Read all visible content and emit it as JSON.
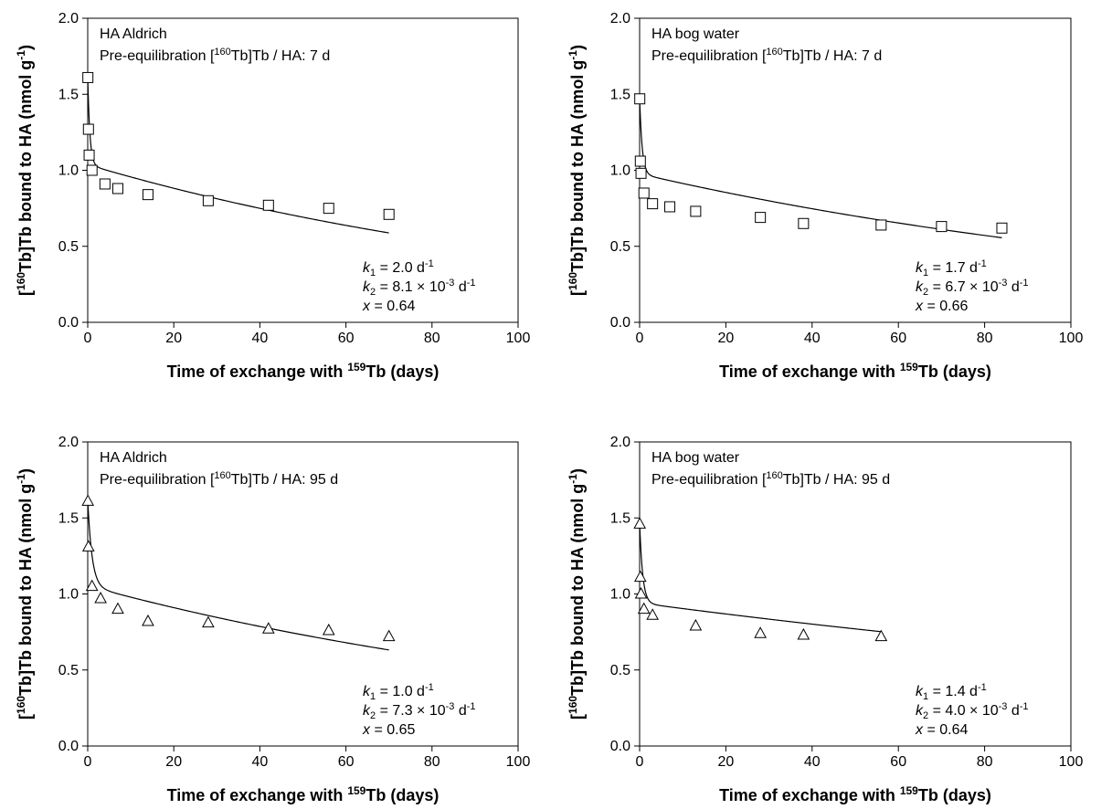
{
  "chart_data": [
    {
      "type": "scatter",
      "marker": "square",
      "annotation": {
        "line1": "HA Aldrich",
        "line2_pre": "Pre-equilibration [",
        "line2_iso": "160",
        "line2_post": "Tb]Tb / HA: 7 d"
      },
      "params": {
        "k1_value": "= 2.0 d",
        "k1_exp": "-1",
        "k2_value": "= 8.1 × 10",
        "k2_exp1": "-3",
        "k2_unit": " d",
        "k2_exp2": "-1",
        "x_value": "= 0.64"
      },
      "xlabel": {
        "pre": "Time of exchange with ",
        "iso": "159",
        "post": "Tb (days)"
      },
      "ylabel": {
        "pre": "[",
        "iso": "160",
        "mid": "Tb]Tb bound to HA (nmol g",
        "exp": "-1",
        "post": ")"
      },
      "xlim": [
        0,
        100
      ],
      "ylim": [
        0,
        2.0
      ],
      "xticks": [
        "0",
        "20",
        "40",
        "60",
        "80",
        "100"
      ],
      "yticks": [
        "0.0",
        "0.5",
        "1.0",
        "1.5",
        "2.0"
      ],
      "x": [
        0.04,
        0.17,
        0.33,
        1,
        4,
        7,
        14,
        28,
        42,
        56,
        70
      ],
      "y": [
        1.61,
        1.27,
        1.1,
        1.0,
        0.91,
        0.88,
        0.84,
        0.8,
        0.77,
        0.75,
        0.71
      ],
      "fit": {
        "y0": 1.62,
        "k1": 2.0,
        "k2": 0.0081,
        "frac": 0.64,
        "xmax": 70
      }
    },
    {
      "type": "scatter",
      "marker": "square",
      "annotation": {
        "line1": "HA bog water",
        "line2_pre": "Pre-equilibration [",
        "line2_iso": "160",
        "line2_post": "Tb]Tb / HA: 7 d"
      },
      "params": {
        "k1_value": "= 1.7 d",
        "k1_exp": "-1",
        "k2_value": "= 6.7 × 10",
        "k2_exp1": "-3",
        "k2_unit": " d",
        "k2_exp2": "-1",
        "x_value": "= 0.66"
      },
      "xlabel": {
        "pre": "Time of exchange with ",
        "iso": "159",
        "post": "Tb (days)"
      },
      "ylabel": {
        "pre": "[",
        "iso": "160",
        "mid": "Tb]Tb bound to HA (nmol g",
        "exp": "-1",
        "post": ")"
      },
      "xlim": [
        0,
        100
      ],
      "ylim": [
        0,
        2.0
      ],
      "xticks": [
        "0",
        "20",
        "40",
        "60",
        "80",
        "100"
      ],
      "yticks": [
        "0.0",
        "0.5",
        "1.0",
        "1.5",
        "2.0"
      ],
      "x": [
        0.04,
        0.17,
        0.33,
        1,
        3,
        7,
        13,
        28,
        38,
        56,
        70,
        84
      ],
      "y": [
        1.47,
        1.06,
        0.98,
        0.85,
        0.78,
        0.76,
        0.73,
        0.69,
        0.65,
        0.64,
        0.63,
        0.62
      ],
      "fit": {
        "y0": 1.48,
        "k1": 1.7,
        "k2": 0.0067,
        "frac": 0.66,
        "xmax": 84
      }
    },
    {
      "type": "scatter",
      "marker": "triangle",
      "annotation": {
        "line1": "HA Aldrich",
        "line2_pre": "Pre-equilibration [",
        "line2_iso": "160",
        "line2_post": "Tb]Tb / HA: 95 d"
      },
      "params": {
        "k1_value": "= 1.0 d",
        "k1_exp": "-1",
        "k2_value": "= 7.3 × 10",
        "k2_exp1": "-3",
        "k2_unit": " d",
        "k2_exp2": "-1",
        "x_value": "= 0.65"
      },
      "xlabel": {
        "pre": "Time of exchange with ",
        "iso": "159",
        "post": "Tb (days)"
      },
      "ylabel": {
        "pre": "[",
        "iso": "160",
        "mid": "Tb]Tb bound to HA (nmol g",
        "exp": "-1",
        "post": ")"
      },
      "xlim": [
        0,
        100
      ],
      "ylim": [
        0,
        2.0
      ],
      "xticks": [
        "0",
        "20",
        "40",
        "60",
        "80",
        "100"
      ],
      "yticks": [
        "0.0",
        "0.5",
        "1.0",
        "1.5",
        "2.0"
      ],
      "x": [
        0.04,
        0.17,
        1,
        3,
        7,
        14,
        28,
        42,
        56,
        70
      ],
      "y": [
        1.61,
        1.31,
        1.05,
        0.97,
        0.9,
        0.82,
        0.81,
        0.77,
        0.76,
        0.72
      ],
      "fit": {
        "y0": 1.62,
        "k1": 1.0,
        "k2": 0.0073,
        "frac": 0.65,
        "xmax": 70
      }
    },
    {
      "type": "scatter",
      "marker": "triangle",
      "annotation": {
        "line1": "HA bog water",
        "line2_pre": "Pre-equilibration [",
        "line2_iso": "160",
        "line2_post": "Tb]Tb / HA: 95 d"
      },
      "params": {
        "k1_value": "= 1.4 d",
        "k1_exp": "-1",
        "k2_value": "= 4.0 × 10",
        "k2_exp1": "-3",
        "k2_unit": " d",
        "k2_exp2": "-1",
        "x_value": "= 0.64"
      },
      "xlabel": {
        "pre": "Time of exchange with ",
        "iso": "159",
        "post": "Tb (days)"
      },
      "ylabel": {
        "pre": "[",
        "iso": "160",
        "mid": "Tb]Tb bound to HA (nmol g",
        "exp": "-1",
        "post": ")"
      },
      "xlim": [
        0,
        100
      ],
      "ylim": [
        0,
        2.0
      ],
      "xticks": [
        "0",
        "20",
        "40",
        "60",
        "80",
        "100"
      ],
      "yticks": [
        "0.0",
        "0.5",
        "1.0",
        "1.5",
        "2.0"
      ],
      "x": [
        0.04,
        0.17,
        0.33,
        1,
        3,
        13,
        28,
        38,
        56
      ],
      "y": [
        1.46,
        1.11,
        1.0,
        0.9,
        0.86,
        0.79,
        0.74,
        0.73,
        0.72
      ],
      "fit": {
        "y0": 1.47,
        "k1": 1.4,
        "k2": 0.004,
        "frac": 0.64,
        "xmax": 56
      }
    }
  ]
}
